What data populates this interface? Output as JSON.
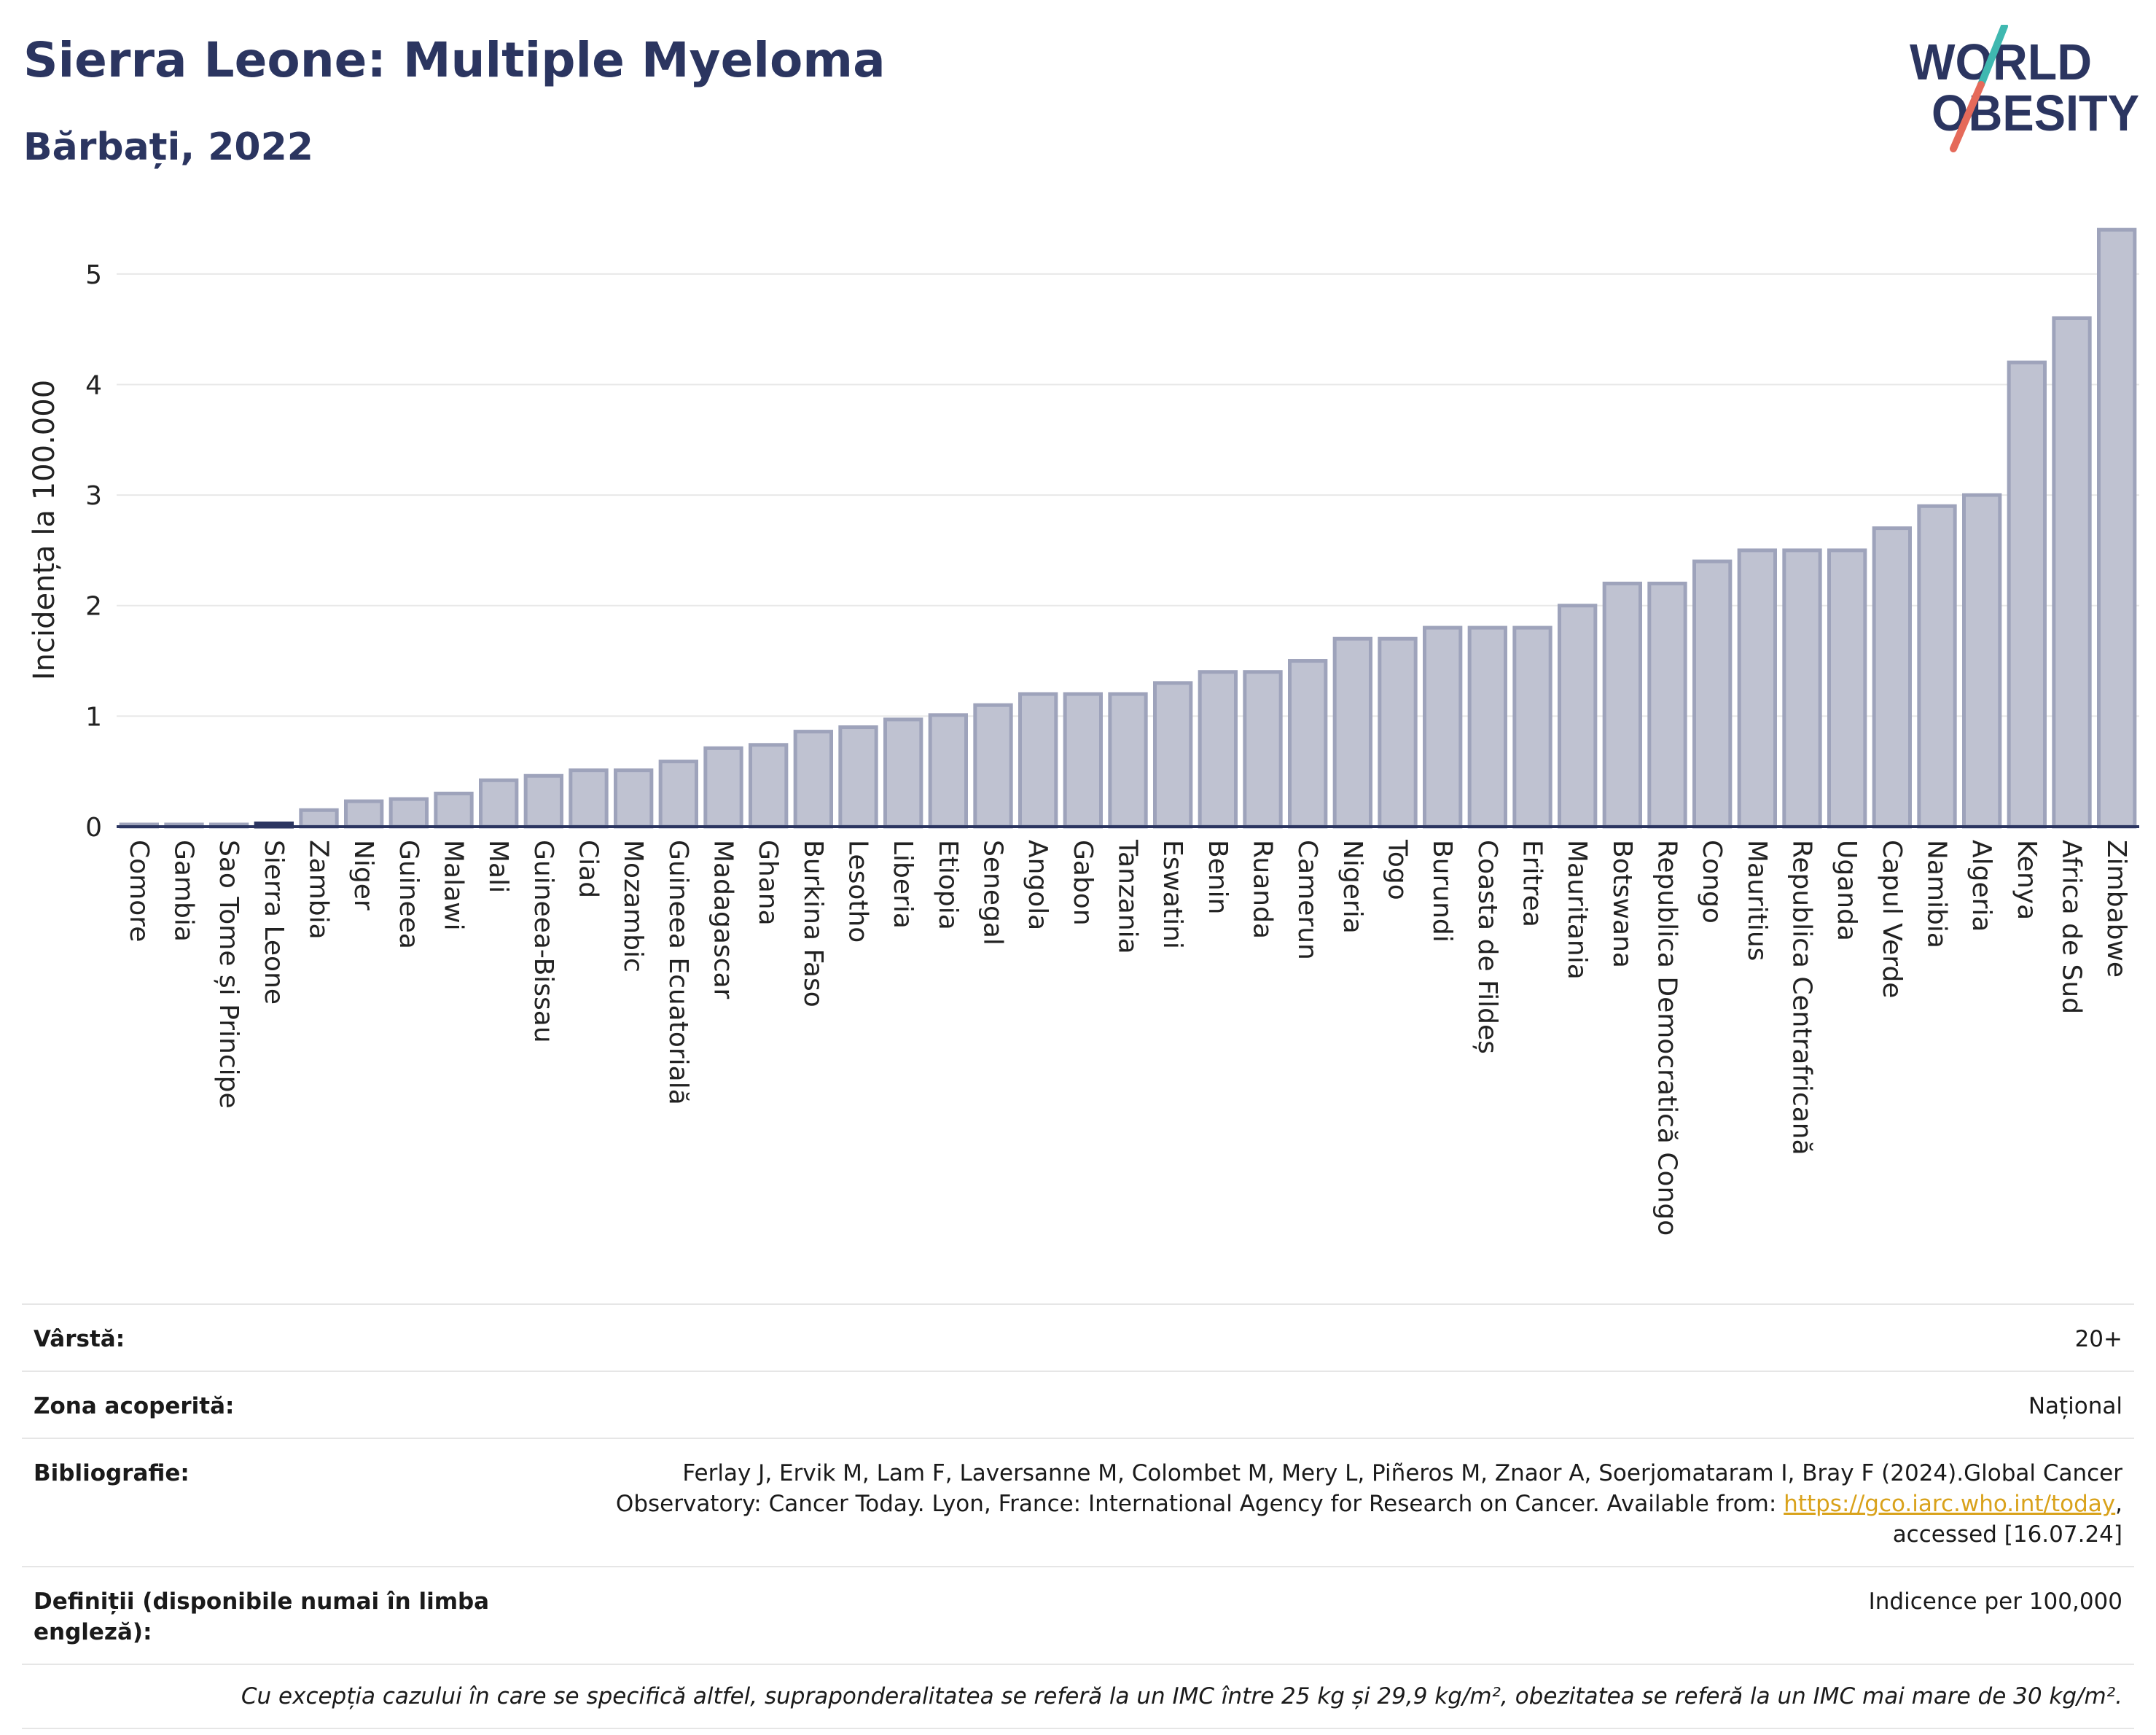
{
  "header": {
    "title": "Sierra Leone: Multiple Myeloma",
    "subtitle": "Bărbați, 2022"
  },
  "logo": {
    "line1": "WORLD",
    "line2": "OBESITY",
    "colors": {
      "text": "#2b3560",
      "slash_teal": "#3fb8b0",
      "slash_coral": "#e56a5a"
    }
  },
  "chart_data": {
    "type": "bar",
    "ylabel": "Incidența la 100.000",
    "xlabel": "",
    "ylim": [
      0,
      5.5
    ],
    "yticks": [
      0,
      1,
      2,
      3,
      4,
      5
    ],
    "grid": true,
    "highlight": "Sierra Leone",
    "colors": {
      "bar": "#bfc2d1",
      "bar_edge": "#9ea3bb",
      "highlight": "#2b3560"
    },
    "categories": [
      "Comore",
      "Gambia",
      "Sao Tome și Principe",
      "Sierra Leone",
      "Zambia",
      "Niger",
      "Guineea",
      "Malawi",
      "Mali",
      "Guineea-Bissau",
      "Ciad",
      "Mozambic",
      "Guineea Ecuatorială",
      "Madagascar",
      "Ghana",
      "Burkina Faso",
      "Lesotho",
      "Liberia",
      "Etiopia",
      "Senegal",
      "Angola",
      "Gabon",
      "Tanzania",
      "Eswatini",
      "Benin",
      "Ruanda",
      "Camerun",
      "Nigeria",
      "Togo",
      "Burundi",
      "Coasta de Fildeș",
      "Eritrea",
      "Mauritania",
      "Botswana",
      "Republica Democratică Congo",
      "Congo",
      "Mauritius",
      "Republica Centrafricană",
      "Uganda",
      "Capul Verde",
      "Namibia",
      "Algeria",
      "Kenya",
      "Africa de Sud",
      "Zimbabwe"
    ],
    "values": [
      0.02,
      0.02,
      0.02,
      0.03,
      0.15,
      0.23,
      0.25,
      0.3,
      0.42,
      0.46,
      0.51,
      0.51,
      0.59,
      0.71,
      0.74,
      0.86,
      0.9,
      0.97,
      1.01,
      1.1,
      1.2,
      1.2,
      1.2,
      1.3,
      1.4,
      1.4,
      1.5,
      1.7,
      1.7,
      1.8,
      1.8,
      1.8,
      2.0,
      2.2,
      2.2,
      2.4,
      2.5,
      2.5,
      2.5,
      2.7,
      2.9,
      3.0,
      4.2,
      4.6,
      5.4
    ]
  },
  "info": {
    "rows": [
      {
        "label": "Vârstă:",
        "value": "20+"
      },
      {
        "label": "Zona acoperită:",
        "value": "Național"
      }
    ],
    "bibliography": {
      "label": "Bibliografie:",
      "line1": "Ferlay J, Ervik M, Lam F, Laversanne M, Colombet M, Mery L, Piñeros M, Znaor A, Soerjomataram I, Bray F (2024).Global Cancer",
      "line2_before": "Observatory: Cancer Today. Lyon, France: International Agency for Research on Cancer. Available from: ",
      "link": "https://gco.iarc.who.int/today",
      "line2_after": ",",
      "line3": "accessed [16.07.24]"
    },
    "definitions": {
      "label": "Definiții (disponibile numai în limba engleză):",
      "value": "Indicence per 100,000"
    },
    "note": "Cu excepția cazului în care se specifică altfel, supraponderalitatea se referă la un IMC între 25 kg și 29,9 kg/m², obezitatea se referă la un IMC mai mare de 30 kg/m²."
  }
}
